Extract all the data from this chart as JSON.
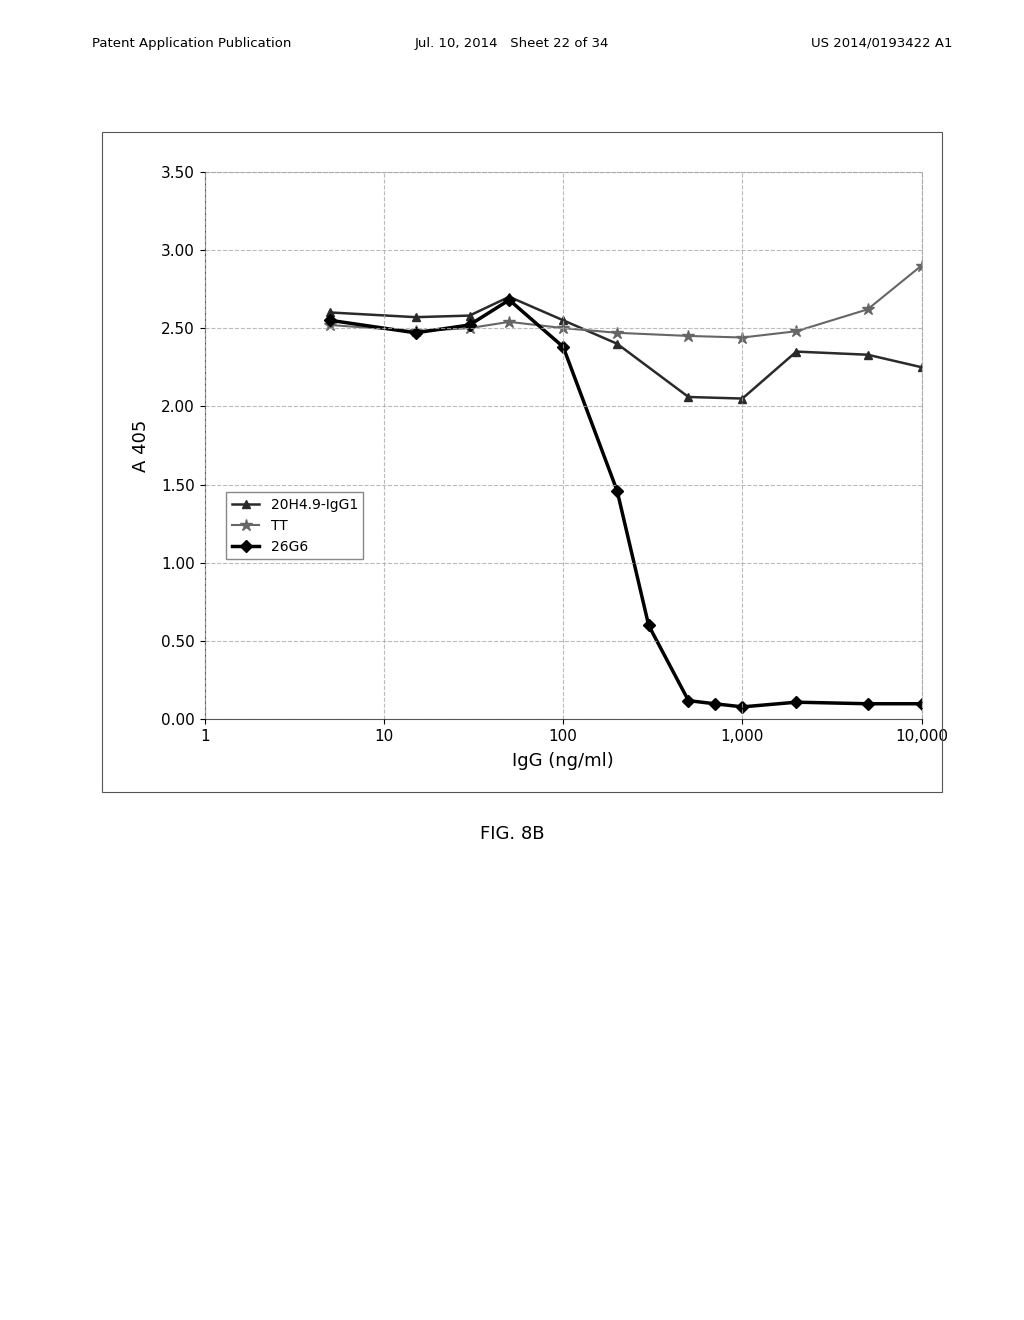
{
  "title": "",
  "xlabel": "IgG (ng/ml)",
  "ylabel": "A 405",
  "fig_caption": "FIG. 8B",
  "header_left": "Patent Application Publication",
  "header_mid": "Jul. 10, 2014   Sheet 22 of 34",
  "header_right": "US 2014/0193422 A1",
  "xlim_log": [
    1,
    10000
  ],
  "ylim": [
    0.0,
    3.5
  ],
  "yticks": [
    0.0,
    0.5,
    1.0,
    1.5,
    2.0,
    2.5,
    3.0,
    3.5
  ],
  "xtick_labels": [
    "1",
    "10",
    "100",
    "1,000",
    "10,000"
  ],
  "xtick_values": [
    1,
    10,
    100,
    1000,
    10000
  ],
  "series": [
    {
      "label": "20H4.9-IgG1",
      "color": "#2a2a2a",
      "linewidth": 1.8,
      "marker": "^",
      "markersize": 6,
      "x": [
        5,
        15,
        30,
        50,
        100,
        200,
        500,
        1000,
        2000,
        5000,
        10000
      ],
      "y": [
        2.6,
        2.57,
        2.58,
        2.7,
        2.55,
        2.4,
        2.06,
        2.05,
        2.35,
        2.33,
        2.25
      ]
    },
    {
      "label": "TT",
      "color": "#666666",
      "linewidth": 1.5,
      "marker": "*",
      "markersize": 9,
      "x": [
        5,
        15,
        30,
        50,
        100,
        200,
        500,
        1000,
        2000,
        5000,
        10000
      ],
      "y": [
        2.52,
        2.48,
        2.5,
        2.54,
        2.5,
        2.47,
        2.45,
        2.44,
        2.48,
        2.62,
        2.9
      ]
    },
    {
      "label": "26G6",
      "color": "#000000",
      "linewidth": 2.5,
      "marker": "D",
      "markersize": 6,
      "x": [
        5,
        15,
        30,
        50,
        100,
        200,
        300,
        500,
        700,
        1000,
        2000,
        5000,
        10000
      ],
      "y": [
        2.55,
        2.47,
        2.52,
        2.68,
        2.38,
        1.46,
        0.6,
        0.12,
        0.1,
        0.08,
        0.11,
        0.1,
        0.1
      ]
    }
  ],
  "legend_loc": "center left",
  "background_color": "#ffffff",
  "plot_bg_color": "#ffffff",
  "grid_color": "#aaaaaa",
  "grid_style": "--",
  "grid_alpha": 0.8
}
